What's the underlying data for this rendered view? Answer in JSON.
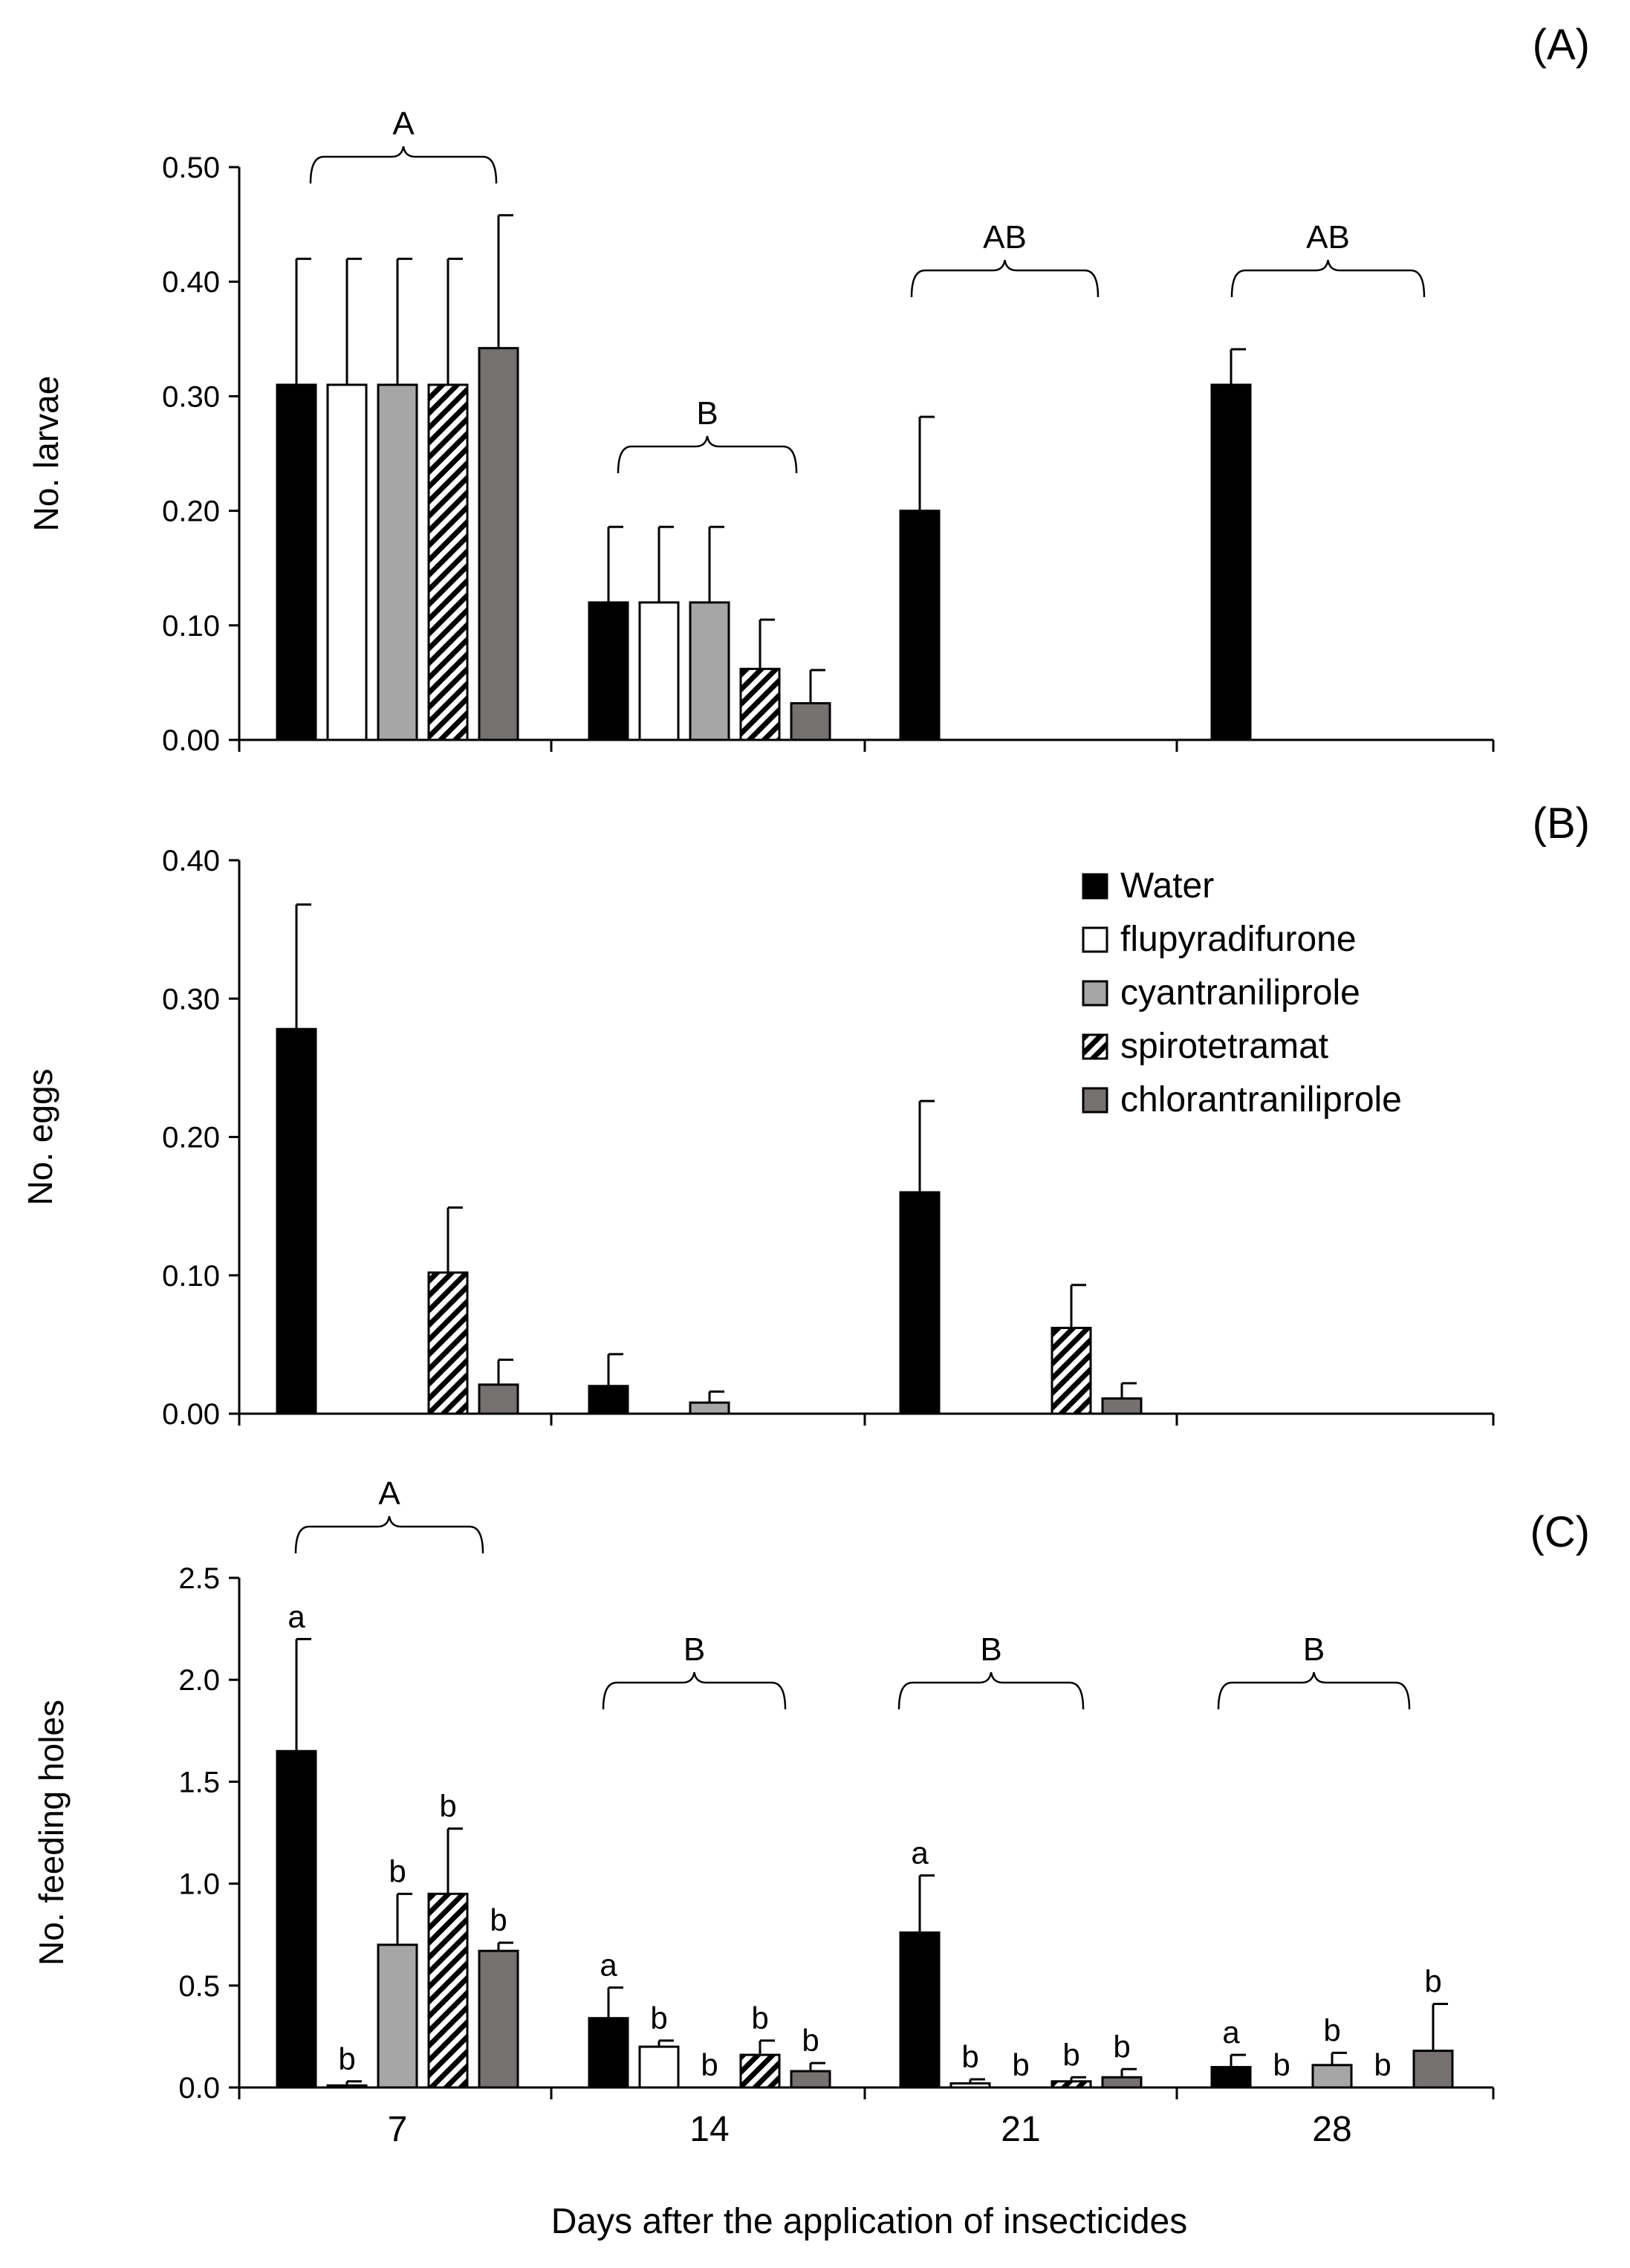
{
  "figure": {
    "xlabel": "Days after the application of insecticides",
    "legend": {
      "placement": "top-right of panel B",
      "entries": [
        "Water",
        "flupyradifurone",
        "cyantraniliprole",
        "spirotetramat",
        "chlorantraniliprole"
      ]
    },
    "colors": {
      "water": "#000000",
      "flupyradifurone": "#ffffff",
      "cyantraniliprole": "#a6a6a6",
      "spirotetramat": "hatch",
      "chlorantraniliprole": "#767171"
    }
  },
  "chart_data": [
    {
      "type": "bar",
      "panel_label": "(A)",
      "ylabel": "No. larvae",
      "ylim": [
        0,
        0.5
      ],
      "yticks": [
        "0.00",
        "0.10",
        "0.20",
        "0.30",
        "0.40",
        "0.50"
      ],
      "categories": [
        "7 days",
        "14 days",
        "21 days",
        "28 days"
      ],
      "tick_labels": [],
      "series": [
        {
          "name": "Water",
          "values": [
            0.31,
            0.12,
            0.2,
            0.31
          ],
          "errors": [
            0.11,
            0.066,
            0.082,
            0.031
          ]
        },
        {
          "name": "flupyradifurone",
          "values": [
            0.31,
            0.12,
            0,
            0
          ],
          "errors": [
            0.11,
            0.066,
            0,
            0
          ]
        },
        {
          "name": "cyantraniliprole",
          "values": [
            0.31,
            0.12,
            0,
            0
          ],
          "errors": [
            0.11,
            0.066,
            0,
            0
          ]
        },
        {
          "name": "spirotetramat",
          "values": [
            0.31,
            0.062,
            0,
            0
          ],
          "errors": [
            0.11,
            0.043,
            0,
            0
          ]
        },
        {
          "name": "chlorantraniliprole",
          "values": [
            0.342,
            0.032,
            0,
            0
          ],
          "errors": [
            0.116,
            0.029,
            0,
            0
          ]
        }
      ],
      "group_letters": [
        "A",
        "B",
        "AB",
        "AB"
      ],
      "bar_letters": []
    },
    {
      "type": "bar",
      "panel_label": "(B)",
      "ylabel": "No. eggs",
      "ylim": [
        0,
        0.4
      ],
      "yticks": [
        "0.00",
        "0.10",
        "0.20",
        "0.30",
        "0.40"
      ],
      "categories": [
        "7 days",
        "14 days",
        "21 days",
        "28 days"
      ],
      "tick_labels": [],
      "series": [
        {
          "name": "Water",
          "values": [
            0.278,
            0.02,
            0.16,
            0
          ],
          "errors": [
            0.09,
            0.023,
            0.066,
            0
          ]
        },
        {
          "name": "flupyradifurone",
          "values": [
            0,
            0,
            0,
            0
          ],
          "errors": [
            0,
            0,
            0,
            0
          ]
        },
        {
          "name": "cyantraniliprole",
          "values": [
            0,
            0.008,
            0,
            0
          ],
          "errors": [
            0,
            0.008,
            0,
            0
          ]
        },
        {
          "name": "spirotetramat",
          "values": [
            0.102,
            0,
            0.062,
            0
          ],
          "errors": [
            0.047,
            0,
            0.031,
            0
          ]
        },
        {
          "name": "chlorantraniliprole",
          "values": [
            0.021,
            0,
            0.011,
            0
          ],
          "errors": [
            0.018,
            0,
            0.011,
            0
          ]
        }
      ],
      "group_letters": [],
      "bar_letters": []
    },
    {
      "type": "bar",
      "panel_label": "(C)",
      "ylabel": "No. feeding holes",
      "ylim": [
        0,
        2.5
      ],
      "yticks": [
        "0.0",
        "0.5",
        "1.0",
        "1.5",
        "2.0",
        "2.5"
      ],
      "categories": [
        "7",
        "14",
        "21",
        "28"
      ],
      "tick_labels": [
        "7",
        "14",
        "21",
        "28"
      ],
      "series": [
        {
          "name": "Water",
          "values": [
            1.65,
            0.34,
            0.76,
            0.1
          ],
          "errors": [
            0.55,
            0.15,
            0.28,
            0.06
          ]
        },
        {
          "name": "flupyradifurone",
          "values": [
            0.01,
            0.2,
            0.02,
            0
          ],
          "errors": [
            0.02,
            0.03,
            0.02,
            0
          ]
        },
        {
          "name": "cyantraniliprole",
          "values": [
            0.7,
            0,
            0,
            0.11
          ],
          "errors": [
            0.25,
            0,
            0,
            0.06
          ]
        },
        {
          "name": "spirotetramat",
          "values": [
            0.95,
            0.16,
            0.03,
            0
          ],
          "errors": [
            0.32,
            0.07,
            0.02,
            0
          ]
        },
        {
          "name": "chlorantraniliprole",
          "values": [
            0.67,
            0.08,
            0.05,
            0.18
          ],
          "errors": [
            0.04,
            0.04,
            0.04,
            0.23
          ]
        }
      ],
      "group_letters": [
        "A",
        "B",
        "B",
        "B"
      ],
      "bar_letters": [
        [
          "a",
          "b",
          "b",
          "b",
          "b"
        ],
        [
          "a",
          "b",
          "b",
          "b",
          "b"
        ],
        [
          "a",
          "b",
          "b",
          "b",
          "b"
        ],
        [
          "a",
          "b",
          "b",
          "b",
          "b"
        ]
      ]
    }
  ]
}
